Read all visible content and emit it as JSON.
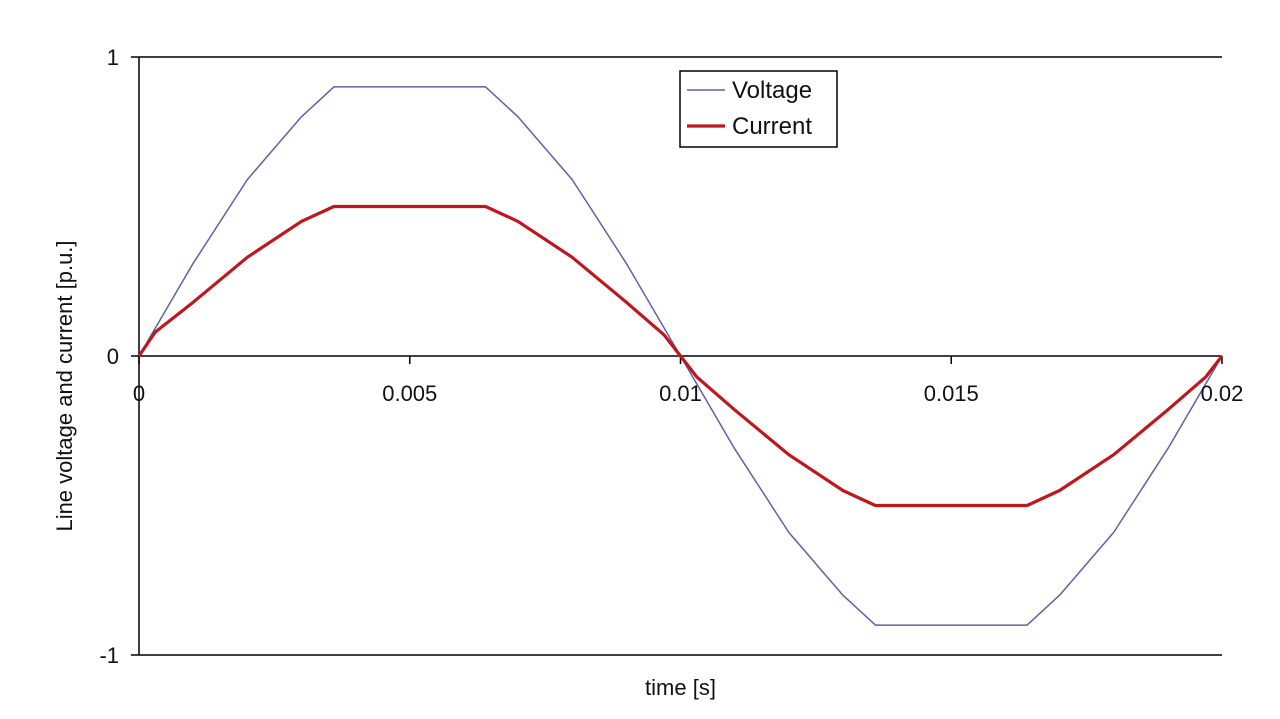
{
  "chart_data": {
    "type": "line",
    "xlabel": "time [s]",
    "ylabel": "Line voltage and current [p.u.]",
    "xlim": [
      0,
      0.02
    ],
    "ylim": [
      -1,
      1
    ],
    "x_ticks": [
      "0",
      "0.005",
      "0.01",
      "0.015",
      "0.02"
    ],
    "y_ticks": [
      "1",
      "0",
      "-1"
    ],
    "grid": "horizontal at y = 1, 0, -1",
    "legend_position": "top-center",
    "series": [
      {
        "name": "Voltage",
        "color": "#5a63a8",
        "x": [
          0,
          0.001,
          0.002,
          0.003,
          0.0036,
          0.0064,
          0.007,
          0.008,
          0.009,
          0.01,
          0.011,
          0.012,
          0.013,
          0.0136,
          0.0164,
          0.017,
          0.018,
          0.019,
          0.02
        ],
        "y": [
          0,
          0.31,
          0.59,
          0.8,
          0.9,
          0.9,
          0.8,
          0.59,
          0.31,
          0,
          -0.31,
          -0.59,
          -0.8,
          -0.9,
          -0.9,
          -0.8,
          -0.59,
          -0.31,
          0
        ]
      },
      {
        "name": "Current",
        "color": "#c0161e",
        "x": [
          0,
          0.0003,
          0.001,
          0.002,
          0.003,
          0.0036,
          0.0064,
          0.007,
          0.008,
          0.009,
          0.0097,
          0.01,
          0.0103,
          0.011,
          0.012,
          0.013,
          0.0136,
          0.0164,
          0.017,
          0.018,
          0.019,
          0.0197,
          0.02
        ],
        "y": [
          0,
          0.08,
          0.18,
          0.33,
          0.45,
          0.5,
          0.5,
          0.45,
          0.33,
          0.18,
          0.07,
          0,
          -0.07,
          -0.18,
          -0.33,
          -0.45,
          -0.5,
          -0.5,
          -0.45,
          -0.33,
          -0.18,
          -0.07,
          0
        ]
      }
    ]
  }
}
